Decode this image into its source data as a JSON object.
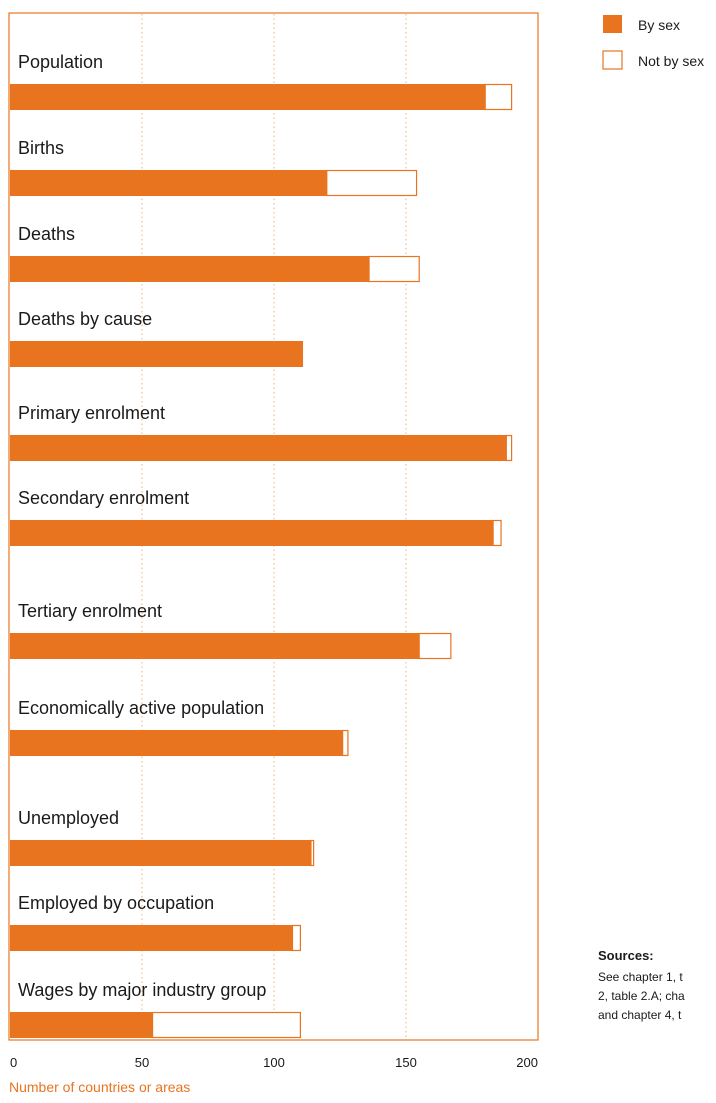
{
  "chart_data": {
    "type": "bar",
    "orientation": "horizontal",
    "stacked": true,
    "categories": [
      "Population",
      "Births",
      "Deaths",
      "Deaths by cause",
      "Primary enrolment",
      "Secondary enrolment",
      "Tertiary enrolment",
      "Economically active population",
      "Unemployed",
      "Employed by occupation",
      "Wages by major industry group"
    ],
    "groups": [
      [
        0,
        1,
        2,
        3
      ],
      [
        4,
        5,
        6
      ],
      [
        7,
        8,
        9,
        10
      ]
    ],
    "series": [
      {
        "name": "By sex",
        "values": [
          180,
          120,
          136,
          111,
          188,
          183,
          155,
          126,
          114,
          107,
          54
        ],
        "color": "#e8741f"
      },
      {
        "name": "Not by sex",
        "values": [
          10,
          34,
          19,
          0,
          2,
          3,
          12,
          2,
          1,
          3,
          56
        ],
        "color": "#ffffff"
      }
    ],
    "xlabel": "Number of countries or areas",
    "xlim": [
      0,
      200
    ],
    "xticks": [
      0,
      50,
      100,
      150,
      200
    ],
    "gridlines": "vertical dotted at ticks",
    "legend_position": "top-right"
  },
  "colors": {
    "accent": "#e8741f",
    "grid": "#f0b27a",
    "text": "#1a1a1a"
  },
  "sources": {
    "title": "Sources:",
    "lines": [
      "See chapter 1, t",
      "2, table 2.A; cha",
      "and chapter 4, t"
    ]
  }
}
